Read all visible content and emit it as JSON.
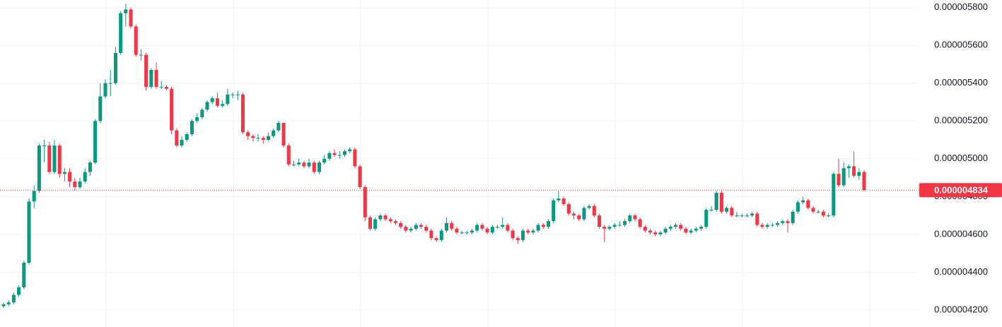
{
  "chart_data": {
    "type": "candlestick",
    "up_color": "#089981",
    "down_color": "#f23645",
    "grid": true,
    "ylim": [
      4.11e-06,
      5.84e-06
    ],
    "yticks": [
      {
        "value": 4.2e-06,
        "label": "0.000004200"
      },
      {
        "value": 4.4e-06,
        "label": "0.000004400"
      },
      {
        "value": 4.6e-06,
        "label": "0.000004600"
      },
      {
        "value": 4.8e-06,
        "label": "0.000004800"
      },
      {
        "value": 5e-06,
        "label": "0.000005000"
      },
      {
        "value": 5.2e-06,
        "label": "0.000005200"
      },
      {
        "value": 5.4e-06,
        "label": "0.000005400"
      },
      {
        "value": 5.6e-06,
        "label": "0.000005600"
      },
      {
        "value": 5.8e-06,
        "label": "0.000005800"
      }
    ],
    "last_price": {
      "value": 4.834e-06,
      "label": "0.000004834"
    },
    "open": [
      4.22e-06,
      4.23e-06,
      4.24e-06,
      4.28e-06,
      4.32e-06,
      4.45e-06,
      4.774e-06,
      4.83e-06,
      5.07e-06,
      5.07e-06,
      4.93e-06,
      5.07e-06,
      4.92e-06,
      4.93e-06,
      4.88e-06,
      4.85e-06,
      4.88e-06,
      4.93e-06,
      4.98e-06,
      5.2e-06,
      5.33e-06,
      5.4e-06,
      5.4e-06,
      5.56e-06,
      5.77e-06,
      5.79e-06,
      5.7e-06,
      5.55e-06,
      5.55e-06,
      5.38e-06,
      5.47e-06,
      5.38e-06,
      5.38e-06,
      5.37e-06,
      5.15e-06,
      5.07e-06,
      5.1e-06,
      5.13e-06,
      5.2e-06,
      5.22e-06,
      5.26e-06,
      5.3e-06,
      5.32e-06,
      5.28e-06,
      5.29e-06,
      5.34e-06,
      5.34e-06,
      5.34e-06,
      5.14e-06,
      5.12e-06,
      5.11e-06,
      5.11e-06,
      5.1e-06,
      5.12e-06,
      5.15e-06,
      5.19e-06,
      5.07e-06,
      4.97e-06,
      4.97e-06,
      4.98e-06,
      4.96e-06,
      4.98e-06,
      4.93e-06,
      4.98e-06,
      5e-06,
      5.03e-06,
      5.02e-06,
      5.02e-06,
      5.04e-06,
      5.05e-06,
      4.96e-06,
      4.85e-06,
      4.69e-06,
      4.63e-06,
      4.68e-06,
      4.7e-06,
      4.68e-06,
      4.67e-06,
      4.66e-06,
      4.64e-06,
      4.62e-06,
      4.63e-06,
      4.65e-06,
      4.64e-06,
      4.62e-06,
      4.58e-06,
      4.57e-06,
      4.62e-06,
      4.66e-06,
      4.63e-06,
      4.61e-06,
      4.61e-06,
      4.61e-06,
      4.62e-06,
      4.65e-06,
      4.63e-06,
      4.61e-06,
      4.64e-06,
      4.64e-06,
      4.65e-06,
      4.62e-06,
      4.58e-06,
      4.57e-06,
      4.62e-06,
      4.61e-06,
      4.62e-06,
      4.65e-06,
      4.64e-06,
      4.67e-06,
      4.78e-06,
      4.79e-06,
      4.76e-06,
      4.71e-06,
      4.7e-06,
      4.68e-06,
      4.74e-06,
      4.75e-06,
      4.7e-06,
      4.64e-06,
      4.63e-06,
      4.64e-06,
      4.65e-06,
      4.65e-06,
      4.67e-06,
      4.7e-06,
      4.68e-06,
      4.64e-06,
      4.62e-06,
      4.61e-06,
      4.6e-06,
      4.61e-06,
      4.63e-06,
      4.64e-06,
      4.65e-06,
      4.63e-06,
      4.61e-06,
      4.62e-06,
      4.63e-06,
      4.64e-06,
      4.73e-06,
      4.73e-06,
      4.82e-06,
      4.72e-06,
      4.74e-06,
      4.7e-06,
      4.7e-06,
      4.7e-06,
      4.7e-06,
      4.71e-06,
      4.65e-06,
      4.64e-06,
      4.65e-06,
      4.65e-06,
      4.66e-06,
      4.67e-06,
      4.66e-06,
      4.72e-06,
      4.77e-06,
      4.78e-06,
      4.74e-06,
      4.72e-06,
      4.72e-06,
      4.7e-06,
      4.7e-06,
      4.92e-06,
      4.86e-06,
      4.95e-06,
      4.96e-06,
      4.91e-06,
      4.93e-06
    ],
    "high": [
      4.24e-06,
      4.25e-06,
      4.29e-06,
      4.33e-06,
      4.46e-06,
      4.79e-06,
      4.86e-06,
      5.08e-06,
      5.1e-06,
      5.09e-06,
      5.1e-06,
      5.08e-06,
      4.95e-06,
      4.95e-06,
      4.9e-06,
      4.9e-06,
      4.95e-06,
      4.99e-06,
      5.21e-06,
      5.4e-06,
      5.42e-06,
      5.47e-06,
      5.59e-06,
      5.78e-06,
      5.82e-06,
      5.8e-06,
      5.71e-06,
      5.58e-06,
      5.56e-06,
      5.48e-06,
      5.51e-06,
      5.41e-06,
      5.39e-06,
      5.38e-06,
      5.16e-06,
      5.12e-06,
      5.14e-06,
      5.21e-06,
      5.24e-06,
      5.27e-06,
      5.31e-06,
      5.33e-06,
      5.35e-06,
      5.31e-06,
      5.37e-06,
      5.35e-06,
      5.36e-06,
      5.35e-06,
      5.15e-06,
      5.13e-06,
      5.13e-06,
      5.12e-06,
      5.14e-06,
      5.16e-06,
      5.2e-06,
      5.19e-06,
      5.08e-06,
      4.99e-06,
      5e-06,
      4.99e-06,
      5e-06,
      4.99e-06,
      4.99e-06,
      5.02e-06,
      5.04e-06,
      5.05e-06,
      5.04e-06,
      5.05e-06,
      5.06e-06,
      5.06e-06,
      4.97e-06,
      4.86e-06,
      4.7e-06,
      4.69e-06,
      4.71e-06,
      4.71e-06,
      4.69e-06,
      4.68e-06,
      4.67e-06,
      4.65e-06,
      4.64e-06,
      4.66e-06,
      4.66e-06,
      4.65e-06,
      4.63e-06,
      4.59e-06,
      4.63e-06,
      4.69e-06,
      4.67e-06,
      4.64e-06,
      4.62e-06,
      4.62e-06,
      4.63e-06,
      4.66e-06,
      4.66e-06,
      4.64e-06,
      4.65e-06,
      4.65e-06,
      4.69e-06,
      4.66e-06,
      4.63e-06,
      4.59e-06,
      4.63e-06,
      4.63e-06,
      4.63e-06,
      4.66e-06,
      4.66e-06,
      4.68e-06,
      4.79e-06,
      4.83e-06,
      4.8e-06,
      4.77e-06,
      4.72e-06,
      4.71e-06,
      4.75e-06,
      4.76e-06,
      4.76e-06,
      4.71e-06,
      4.65e-06,
      4.65e-06,
      4.66e-06,
      4.67e-06,
      4.68e-06,
      4.71e-06,
      4.71e-06,
      4.69e-06,
      4.65e-06,
      4.63e-06,
      4.62e-06,
      4.62e-06,
      4.64e-06,
      4.65e-06,
      4.66e-06,
      4.66e-06,
      4.64e-06,
      4.63e-06,
      4.64e-06,
      4.65e-06,
      4.74e-06,
      4.75e-06,
      4.83e-06,
      4.83e-06,
      4.75e-06,
      4.75e-06,
      4.72e-06,
      4.71e-06,
      4.71e-06,
      4.72e-06,
      4.72e-06,
      4.66e-06,
      4.66e-06,
      4.66e-06,
      4.67e-06,
      4.68e-06,
      4.68e-06,
      4.73e-06,
      4.78e-06,
      4.8e-06,
      4.79e-06,
      4.75e-06,
      4.73e-06,
      4.73e-06,
      4.71e-06,
      4.93e-06,
      5e-06,
      4.98e-06,
      4.97e-06,
      5.04e-06,
      4.95e-06,
      4.94e-06
    ],
    "low": [
      4.21e-06,
      4.22e-06,
      4.23e-06,
      4.27e-06,
      4.31e-06,
      4.44e-06,
      4.74e-06,
      4.82e-06,
      4.98e-06,
      4.92e-06,
      4.92e-06,
      4.9e-06,
      4.88e-06,
      4.85e-06,
      4.83e-06,
      4.84e-06,
      4.87e-06,
      4.91e-06,
      4.97e-06,
      5.19e-06,
      5.32e-06,
      5.33e-06,
      5.39e-06,
      5.55e-06,
      5.7e-06,
      5.69e-06,
      5.54e-06,
      5.52e-06,
      5.36e-06,
      5.37e-06,
      5.37e-06,
      5.37e-06,
      5.36e-06,
      5.13e-06,
      5.06e-06,
      5.06e-06,
      5.09e-06,
      5.12e-06,
      5.19e-06,
      5.21e-06,
      5.25e-06,
      5.29e-06,
      5.27e-06,
      5.27e-06,
      5.28e-06,
      5.32e-06,
      5.31e-06,
      5.13e-06,
      5.1e-06,
      5.09e-06,
      5.09e-06,
      5.08e-06,
      5.09e-06,
      5.11e-06,
      5.14e-06,
      5.06e-06,
      4.96e-06,
      4.96e-06,
      4.96e-06,
      4.95e-06,
      4.95e-06,
      4.92e-06,
      4.92e-06,
      4.97e-06,
      4.99e-06,
      5.01e-06,
      5e-06,
      5.01e-06,
      5.03e-06,
      4.95e-06,
      4.84e-06,
      4.67e-06,
      4.62e-06,
      4.62e-06,
      4.67e-06,
      4.67e-06,
      4.66e-06,
      4.65e-06,
      4.63e-06,
      4.61e-06,
      4.61e-06,
      4.62e-06,
      4.63e-06,
      4.61e-06,
      4.57e-06,
      4.56e-06,
      4.56e-06,
      4.61e-06,
      4.62e-06,
      4.6e-06,
      4.6e-06,
      4.6e-06,
      4.6e-06,
      4.61e-06,
      4.62e-06,
      4.6e-06,
      4.6e-06,
      4.63e-06,
      4.63e-06,
      4.61e-06,
      4.57e-06,
      4.55e-06,
      4.56e-06,
      4.6e-06,
      4.6e-06,
      4.61e-06,
      4.63e-06,
      4.63e-06,
      4.66e-06,
      4.77e-06,
      4.75e-06,
      4.7e-06,
      4.68e-06,
      4.67e-06,
      4.67e-06,
      4.73e-06,
      4.69e-06,
      4.63e-06,
      4.56e-06,
      4.62e-06,
      4.63e-06,
      4.64e-06,
      4.64e-06,
      4.66e-06,
      4.67e-06,
      4.63e-06,
      4.61e-06,
      4.6e-06,
      4.59e-06,
      4.59e-06,
      4.6e-06,
      4.62e-06,
      4.63e-06,
      4.62e-06,
      4.6e-06,
      4.6e-06,
      4.61e-06,
      4.62e-06,
      4.63e-06,
      4.72e-06,
      4.72e-06,
      4.71e-06,
      4.71e-06,
      4.69e-06,
      4.69e-06,
      4.69e-06,
      4.69e-06,
      4.69e-06,
      4.64e-06,
      4.63e-06,
      4.63e-06,
      4.64e-06,
      4.64e-06,
      4.65e-06,
      4.61e-06,
      4.65e-06,
      4.71e-06,
      4.76e-06,
      4.73e-06,
      4.71e-06,
      4.71e-06,
      4.69e-06,
      4.69e-06,
      4.69e-06,
      4.85e-06,
      4.85e-06,
      4.9e-06,
      4.9e-06,
      4.89e-06,
      4.83e-06
    ],
    "close": [
      4.23e-06,
      4.24e-06,
      4.28e-06,
      4.32e-06,
      4.45e-06,
      4.774e-06,
      4.83e-06,
      5.07e-06,
      5.07e-06,
      4.93e-06,
      5.07e-06,
      4.92e-06,
      4.93e-06,
      4.88e-06,
      4.85e-06,
      4.88e-06,
      4.93e-06,
      4.98e-06,
      5.2e-06,
      5.33e-06,
      5.4e-06,
      5.4e-06,
      5.56e-06,
      5.77e-06,
      5.79e-06,
      5.7e-06,
      5.55e-06,
      5.55e-06,
      5.38e-06,
      5.47e-06,
      5.38e-06,
      5.38e-06,
      5.37e-06,
      5.15e-06,
      5.07e-06,
      5.1e-06,
      5.13e-06,
      5.2e-06,
      5.22e-06,
      5.26e-06,
      5.3e-06,
      5.32e-06,
      5.28e-06,
      5.29e-06,
      5.34e-06,
      5.34e-06,
      5.34e-06,
      5.14e-06,
      5.12e-06,
      5.11e-06,
      5.11e-06,
      5.1e-06,
      5.12e-06,
      5.15e-06,
      5.19e-06,
      5.07e-06,
      4.97e-06,
      4.97e-06,
      4.98e-06,
      4.96e-06,
      4.98e-06,
      4.93e-06,
      4.98e-06,
      5e-06,
      5.03e-06,
      5.02e-06,
      5.02e-06,
      5.04e-06,
      5.05e-06,
      4.96e-06,
      4.85e-06,
      4.69e-06,
      4.63e-06,
      4.68e-06,
      4.7e-06,
      4.68e-06,
      4.67e-06,
      4.66e-06,
      4.64e-06,
      4.62e-06,
      4.63e-06,
      4.65e-06,
      4.64e-06,
      4.62e-06,
      4.58e-06,
      4.57e-06,
      4.62e-06,
      4.66e-06,
      4.63e-06,
      4.61e-06,
      4.61e-06,
      4.61e-06,
      4.62e-06,
      4.65e-06,
      4.63e-06,
      4.61e-06,
      4.64e-06,
      4.64e-06,
      4.65e-06,
      4.62e-06,
      4.58e-06,
      4.57e-06,
      4.62e-06,
      4.61e-06,
      4.62e-06,
      4.65e-06,
      4.64e-06,
      4.67e-06,
      4.78e-06,
      4.79e-06,
      4.76e-06,
      4.71e-06,
      4.7e-06,
      4.68e-06,
      4.74e-06,
      4.75e-06,
      4.7e-06,
      4.64e-06,
      4.63e-06,
      4.64e-06,
      4.65e-06,
      4.65e-06,
      4.67e-06,
      4.7e-06,
      4.68e-06,
      4.64e-06,
      4.62e-06,
      4.61e-06,
      4.6e-06,
      4.61e-06,
      4.63e-06,
      4.64e-06,
      4.65e-06,
      4.63e-06,
      4.61e-06,
      4.62e-06,
      4.63e-06,
      4.64e-06,
      4.73e-06,
      4.73e-06,
      4.82e-06,
      4.72e-06,
      4.74e-06,
      4.7e-06,
      4.7e-06,
      4.7e-06,
      4.7e-06,
      4.71e-06,
      4.65e-06,
      4.64e-06,
      4.65e-06,
      4.65e-06,
      4.66e-06,
      4.67e-06,
      4.66e-06,
      4.72e-06,
      4.77e-06,
      4.78e-06,
      4.74e-06,
      4.72e-06,
      4.72e-06,
      4.7e-06,
      4.7e-06,
      4.92e-06,
      4.86e-06,
      4.95e-06,
      4.96e-06,
      4.91e-06,
      4.93e-06,
      4.834e-06
    ]
  }
}
